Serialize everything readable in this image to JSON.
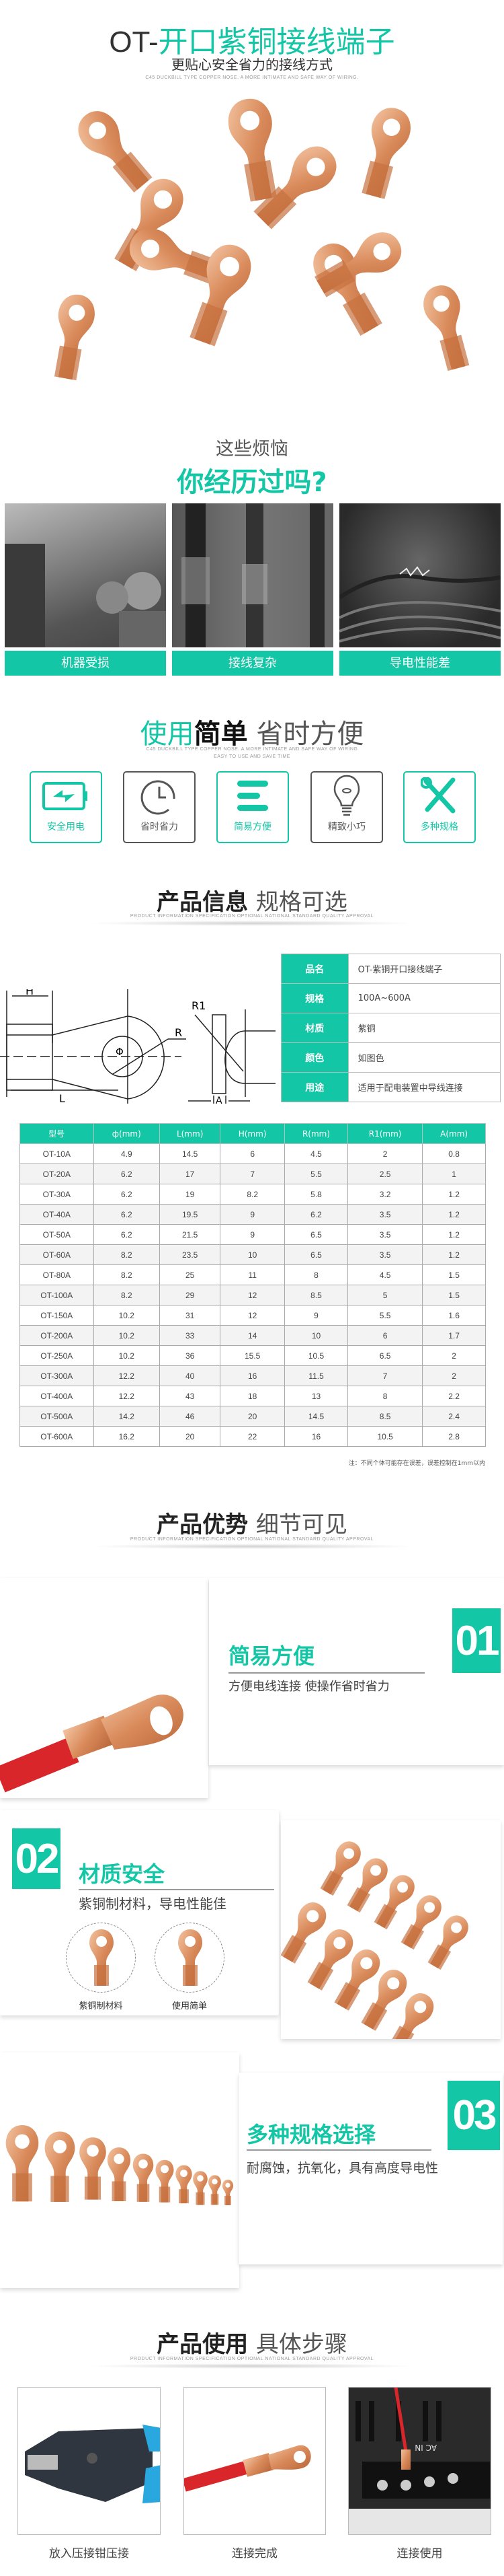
{
  "header": {
    "title_prefix": "OT-",
    "title_main": "开口紫铜接线端子",
    "subtitle": "更贴心安全省力的接线方式",
    "english": "C45 DUCKBILL TYPE COPPER NOSE. A MORE INTIMATE AND SAFE WAY OF WIRING."
  },
  "problems": {
    "line1": "这些烦恼",
    "line2": "你经历过吗?",
    "items": [
      {
        "label": "机器受损"
      },
      {
        "label": "接线复杂"
      },
      {
        "label": "导电性能差"
      }
    ]
  },
  "features": {
    "title_green": "使用",
    "title_bold": "简单",
    "title_light": "省时方便",
    "english1": "C45 DUCKBILL TYPE COPPER NOSE. A MORE INTIMATE AND SAFE WAY OF WIRING",
    "english2": "EASY TO USE AND SAVE TIME",
    "items": [
      {
        "label": "安全用电",
        "icon": "battery-charge-icon"
      },
      {
        "label": "省时省力",
        "icon": "clock-icon"
      },
      {
        "label": "简易方便",
        "icon": "menu-lines-icon"
      },
      {
        "label": "精致小巧",
        "icon": "lightbulb-icon"
      },
      {
        "label": "多种规格",
        "icon": "tools-icon"
      }
    ]
  },
  "info": {
    "title_bold": "产品信息",
    "title_light": "规格可选",
    "english": "PRODUCT INFORMATION SPECIFICATION OPTIONAL NATIONAL STANDARD QUALITY APPROVAL",
    "diagram_labels": {
      "h": "H",
      "l": "L",
      "phi": "Φ",
      "r": "R",
      "r1": "R1",
      "a": "A"
    },
    "rows": [
      {
        "key": "品名",
        "value": "OT-紫铜开口接线端子"
      },
      {
        "key": "规格",
        "value": "100A~600A"
      },
      {
        "key": "材质",
        "value": "紫铜"
      },
      {
        "key": "颜色",
        "value": "如图色"
      },
      {
        "key": "用途",
        "value": "适用于配电装置中导线连接"
      }
    ]
  },
  "spec_table": {
    "headers": [
      "型号",
      "ф(mm)",
      "L(mm)",
      "H(mm)",
      "R(mm)",
      "R1(mm)",
      "A(mm)"
    ],
    "rows": [
      [
        "OT-10A",
        "4.9",
        "14.5",
        "6",
        "4.5",
        "2",
        "0.8"
      ],
      [
        "OT-20A",
        "6.2",
        "17",
        "7",
        "5.5",
        "2.5",
        "1"
      ],
      [
        "OT-30A",
        "6.2",
        "19",
        "8.2",
        "5.8",
        "3.2",
        "1.2"
      ],
      [
        "OT-40A",
        "6.2",
        "19.5",
        "9",
        "6.2",
        "3.5",
        "1.2"
      ],
      [
        "OT-50A",
        "6.2",
        "21.5",
        "9",
        "6.5",
        "3.5",
        "1.2"
      ],
      [
        "OT-60A",
        "8.2",
        "23.5",
        "10",
        "6.5",
        "3.5",
        "1.2"
      ],
      [
        "OT-80A",
        "8.2",
        "25",
        "11",
        "8",
        "4.5",
        "1.5"
      ],
      [
        "OT-100A",
        "8.2",
        "29",
        "12",
        "8.5",
        "5",
        "1.5"
      ],
      [
        "OT-150A",
        "10.2",
        "31",
        "12",
        "9",
        "5.5",
        "1.6"
      ],
      [
        "OT-200A",
        "10.2",
        "33",
        "14",
        "10",
        "6",
        "1.7"
      ],
      [
        "OT-250A",
        "10.2",
        "36",
        "15.5",
        "10.5",
        "6.5",
        "2"
      ],
      [
        "OT-300A",
        "12.2",
        "40",
        "16",
        "11.5",
        "7",
        "2"
      ],
      [
        "OT-400A",
        "12.2",
        "43",
        "18",
        "13",
        "8",
        "2.2"
      ],
      [
        "OT-500A",
        "14.2",
        "46",
        "20",
        "14.5",
        "8.5",
        "2.4"
      ],
      [
        "OT-600A",
        "16.2",
        "20",
        "22",
        "16",
        "10.5",
        "2.8"
      ]
    ],
    "note": "注：不同个体可能存在误差，误差控制在1mm以内"
  },
  "advantages": {
    "title_bold": "产品优势",
    "title_light": "细节可见",
    "english": "PRODUCT INFORMATION SPECIFICATION OPTIONAL NATIONAL STANDARD QUALITY APPROVAL",
    "items": [
      {
        "num": "01",
        "title": "简易方便",
        "desc": "方便电线连接  使操作省时省力"
      },
      {
        "num": "02",
        "title": "材质安全",
        "desc": "紫铜制材料，导电性能佳",
        "detail_labels": [
          "紫铜制材料",
          "使用简单"
        ]
      },
      {
        "num": "03",
        "title": "多种规格选择",
        "desc": "耐腐蚀，抗氧化，具有高度导电性"
      }
    ]
  },
  "usage": {
    "title_bold": "产品使用",
    "title_light": "具体步骤",
    "english": "PRODUCT INFORMATION SPECIFICATION OPTIONAL NATIONAL STANDARD QUALITY APPROVAL",
    "steps": [
      {
        "label": "放入压接钳压接"
      },
      {
        "label": "连接完成"
      },
      {
        "label": "连接使用"
      }
    ],
    "terminal_print": "AC IN"
  },
  "colors": {
    "accent": "#13c6a6",
    "copper": "#d98a5a",
    "wire_red": "#d9262b"
  }
}
